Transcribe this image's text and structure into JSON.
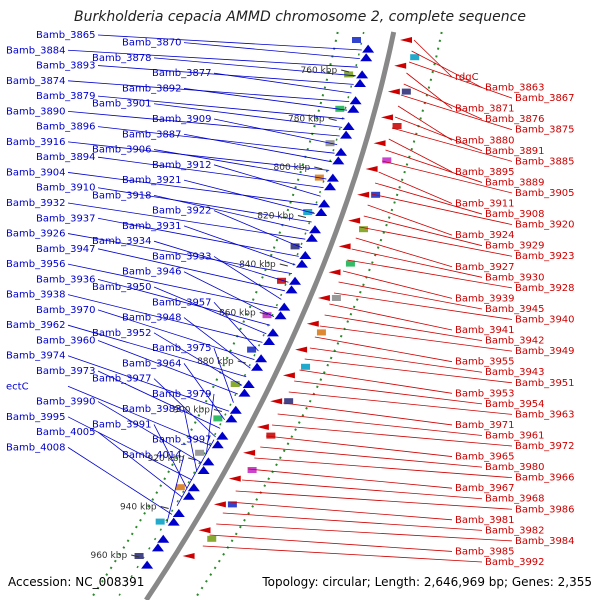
{
  "title": "Burkholderia cepacia AMMD chromosome 2, complete sequence",
  "footer": {
    "accession": "Accession: NC_008391",
    "summary": "Topology: circular; Length: 2,646,969 bp; Genes: 2,355"
  },
  "colors": {
    "forward": "#0000cc",
    "reverse": "#cc0000",
    "backbone": "#888888",
    "dots": "#2a8a2a"
  },
  "ticks": [
    "760 kbp",
    "780 kbp",
    "800 kbp",
    "820 kbp",
    "840 kbp",
    "860 kbp",
    "880 kbp",
    "900 kbp",
    "920 kbp",
    "940 kbp",
    "960 kbp"
  ],
  "left_labels": [
    "Bamb_3865",
    "Bamb_3870",
    "Bamb_3884",
    "Bamb_3878",
    "Bamb_3893",
    "Bamb_3877",
    "Bamb_3874",
    "Bamb_3892",
    "Bamb_3879",
    "Bamb_3901",
    "Bamb_3890",
    "Bamb_3909",
    "Bamb_3896",
    "Bamb_3887",
    "Bamb_3916",
    "Bamb_3906",
    "Bamb_3894",
    "Bamb_3912",
    "Bamb_3904",
    "Bamb_3921",
    "Bamb_3910",
    "Bamb_3918",
    "Bamb_3932",
    "Bamb_3922",
    "Bamb_3937",
    "Bamb_3931",
    "Bamb_3926",
    "Bamb_3934",
    "Bamb_3947",
    "Bamb_3933",
    "Bamb_3956",
    "Bamb_3946",
    "Bamb_3936",
    "Bamb_3950",
    "Bamb_3938",
    "Bamb_3957",
    "Bamb_3970",
    "Bamb_3948",
    "Bamb_3962",
    "Bamb_3952",
    "Bamb_3960",
    "Bamb_3975",
    "Bamb_3974",
    "Bamb_3964",
    "Bamb_3973",
    "Bamb_3977",
    "ectC",
    "Bamb_3979",
    "Bamb_3990",
    "Bamb_3983",
    "Bamb_3995",
    "Bamb_3991",
    "Bamb_4005",
    "Bamb_3997",
    "Bamb_4008",
    "Bamb_4014"
  ],
  "right_labels": [
    "rdgC",
    "Bamb_3863",
    "Bamb_3867",
    "Bamb_3871",
    "Bamb_3876",
    "Bamb_3875",
    "Bamb_3880",
    "Bamb_3891",
    "Bamb_3885",
    "Bamb_3895",
    "Bamb_3889",
    "Bamb_3905",
    "Bamb_3911",
    "Bamb_3908",
    "Bamb_3920",
    "Bamb_3924",
    "Bamb_3929",
    "Bamb_3923",
    "Bamb_3927",
    "Bamb_3930",
    "Bamb_3928",
    "Bamb_3939",
    "Bamb_3945",
    "Bamb_3940",
    "Bamb_3941",
    "Bamb_3942",
    "Bamb_3949",
    "Bamb_3955",
    "Bamb_3943",
    "Bamb_3951",
    "Bamb_3953",
    "Bamb_3954",
    "Bamb_3963",
    "Bamb_3971",
    "Bamb_3961",
    "Bamb_3972",
    "Bamb_3965",
    "Bamb_3980",
    "Bamb_3966",
    "Bamb_3967",
    "Bamb_3968",
    "Bamb_3986",
    "Bamb_3981",
    "Bamb_3982",
    "Bamb_3984",
    "Bamb_3985",
    "Bamb_3992"
  ]
}
